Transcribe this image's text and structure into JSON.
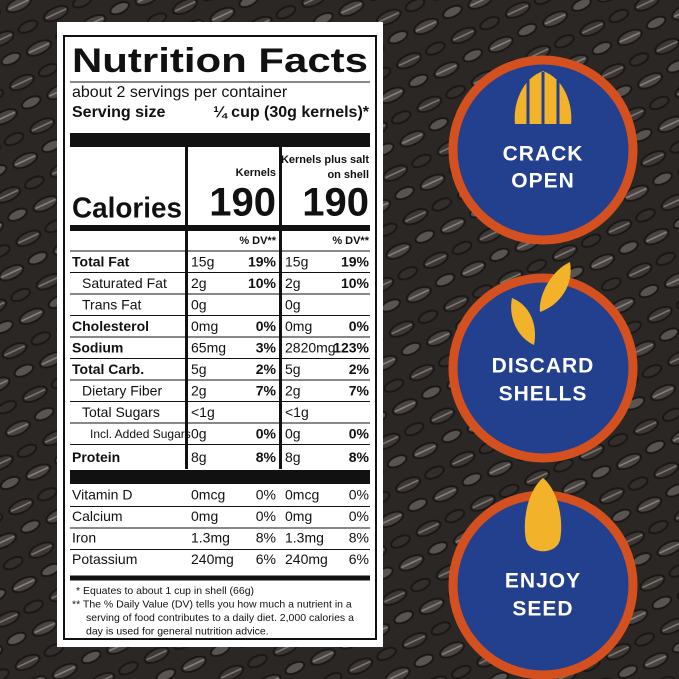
{
  "header": {
    "title": "Nutrition Facts",
    "servings": "about 2 servings per container",
    "serving_size_label": "Serving size",
    "serving_size_value": "¼ cup (30g kernels)*"
  },
  "columns": {
    "kernels": "Kernels",
    "salt": [
      "Kernels plus salt",
      "on shell"
    ]
  },
  "calories": {
    "label": "Calories",
    "kernels": "190",
    "salt": "190"
  },
  "dv_header": {
    "kernels": "% DV**",
    "salt": "% DV**"
  },
  "rows": [
    {
      "label": "Total Fat",
      "kernels": {
        "amount": "15g",
        "dv": "19%"
      },
      "salt": {
        "amount": "15g",
        "dv": "19%"
      }
    },
    {
      "label": "Saturated Fat",
      "kernels": {
        "amount": "2g",
        "dv": "10%"
      },
      "salt": {
        "amount": "2g",
        "dv": "10%"
      }
    },
    {
      "label": "Trans Fat",
      "kernels": {
        "amount": "0g"
      },
      "salt": {
        "amount": "0g"
      }
    },
    {
      "label": "Cholesterol",
      "kernels": {
        "amount": "0mg",
        "dv": "0%"
      },
      "salt": {
        "amount": "0mg",
        "dv": "0%"
      }
    },
    {
      "label": "Sodium",
      "kernels": {
        "amount": "65mg",
        "dv": "3%"
      },
      "salt": {
        "amount": "2820mg",
        "dv": "123%"
      }
    },
    {
      "label": "Total Carb.",
      "kernels": {
        "amount": "5g",
        "dv": "2%"
      },
      "salt": {
        "amount": "5g",
        "dv": "2%"
      }
    },
    {
      "label": "Dietary Fiber",
      "kernels": {
        "amount": "2g",
        "dv": "7%"
      },
      "salt": {
        "amount": "2g",
        "dv": "7%"
      }
    },
    {
      "label": "Total Sugars",
      "kernels": {
        "amount": "<1g"
      },
      "salt": {
        "amount": "<1g"
      }
    },
    {
      "label": "Incl. Added Sugars",
      "kernels": {
        "amount": "0g",
        "dv": "0%"
      },
      "salt": {
        "amount": "0g",
        "dv": "0%"
      }
    },
    {
      "label": "Protein",
      "kernels": {
        "amount": "8g",
        "dv": "8%"
      },
      "salt": {
        "amount": "8g",
        "dv": "8%"
      }
    }
  ],
  "micros": [
    {
      "label": "Vitamin D",
      "kernels": {
        "amount": "0mcg",
        "dv": "0%"
      },
      "salt": {
        "amount": "0mcg",
        "dv": "0%"
      }
    },
    {
      "label": "Calcium",
      "kernels": {
        "amount": "0mg",
        "dv": "0%"
      },
      "salt": {
        "amount": "0mg",
        "dv": "0%"
      }
    },
    {
      "label": "Iron",
      "kernels": {
        "amount": "1.3mg",
        "dv": "8%"
      },
      "salt": {
        "amount": "1.3mg",
        "dv": "8%"
      }
    },
    {
      "label": "Potassium",
      "kernels": {
        "amount": "240mg",
        "dv": "6%"
      },
      "salt": {
        "amount": "240mg",
        "dv": "6%"
      }
    }
  ],
  "footnotes": [
    "* Equates to about 1 cup in shell (66g)",
    "** The % Daily Value (DV) tells you how much a nutrient in a",
    "serving of food contributes to a daily diet. 2,000 calories a",
    "day is used for general nutrition advice."
  ],
  "steps": [
    [
      "CRACK",
      "OPEN"
    ],
    [
      "DISCARD",
      "SHELLS"
    ],
    [
      "ENJOY",
      "SEED"
    ]
  ]
}
